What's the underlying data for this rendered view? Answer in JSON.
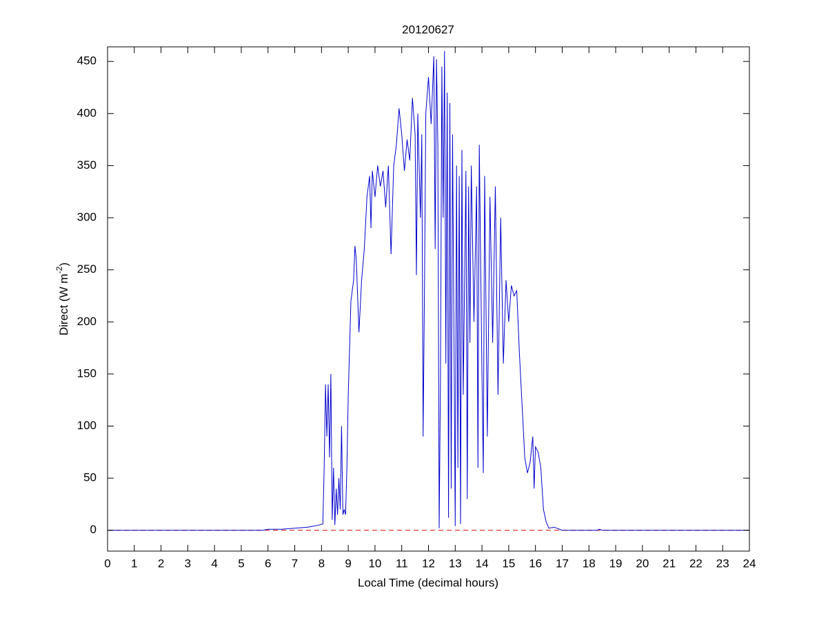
{
  "chart_data": {
    "type": "line",
    "title": "20120627",
    "xlabel": "Local Time (decimal hours)",
    "ylabel": [
      "Direct (W m",
      "-2",
      ")"
    ],
    "xlim": [
      0,
      24
    ],
    "ylim": [
      -20,
      464
    ],
    "xticks": [
      0,
      1,
      2,
      3,
      4,
      5,
      6,
      7,
      8,
      9,
      10,
      11,
      12,
      13,
      14,
      15,
      16,
      17,
      18,
      19,
      20,
      21,
      22,
      23,
      24
    ],
    "yticks": [
      0,
      50,
      100,
      150,
      200,
      250,
      300,
      350,
      400,
      450
    ],
    "grid": false,
    "reference_line": {
      "value": 0,
      "color": "#cc0000",
      "style": "dashed"
    },
    "series": [
      {
        "color": "#0000cc",
        "x": [
          0,
          5.8,
          6,
          6.5,
          7,
          7.5,
          7.9,
          8.05,
          8.1,
          8.15,
          8.2,
          8.25,
          8.3,
          8.35,
          8.4,
          8.45,
          8.5,
          8.55,
          8.6,
          8.65,
          8.7,
          8.75,
          8.8,
          8.85,
          8.9,
          8.95,
          9.0,
          9.1,
          9.2,
          9.25,
          9.3,
          9.4,
          9.5,
          9.6,
          9.7,
          9.8,
          9.85,
          9.9,
          10.0,
          10.1,
          10.2,
          10.3,
          10.4,
          10.5,
          10.6,
          10.7,
          10.8,
          10.9,
          11.0,
          11.1,
          11.2,
          11.3,
          11.4,
          11.5,
          11.55,
          11.6,
          11.7,
          11.75,
          11.8,
          11.85,
          11.9,
          12.0,
          12.1,
          12.2,
          12.25,
          12.3,
          12.35,
          12.4,
          12.45,
          12.5,
          12.55,
          12.6,
          12.65,
          12.7,
          12.75,
          12.8,
          12.85,
          12.9,
          12.95,
          13.0,
          13.05,
          13.1,
          13.15,
          13.2,
          13.25,
          13.3,
          13.4,
          13.45,
          13.5,
          13.55,
          13.6,
          13.7,
          13.8,
          13.85,
          13.9,
          14.0,
          14.05,
          14.1,
          14.2,
          14.3,
          14.4,
          14.5,
          14.6,
          14.7,
          14.8,
          14.9,
          15.0,
          15.1,
          15.2,
          15.3,
          15.4,
          15.5,
          15.6,
          15.7,
          15.8,
          15.9,
          15.95,
          16.0,
          16.1,
          16.2,
          16.3,
          16.4,
          16.5,
          16.7,
          17.0,
          18.3,
          18.4,
          18.5,
          24
        ],
        "values": [
          0,
          0,
          1,
          1,
          2,
          3,
          5,
          6,
          60,
          140,
          90,
          140,
          70,
          150,
          10,
          60,
          5,
          40,
          15,
          50,
          20,
          100,
          15,
          20,
          15,
          60,
          130,
          220,
          240,
          273,
          260,
          190,
          240,
          270,
          320,
          340,
          290,
          345,
          320,
          350,
          330,
          345,
          310,
          350,
          265,
          350,
          370,
          405,
          380,
          345,
          375,
          355,
          415,
          380,
          245,
          400,
          300,
          380,
          90,
          230,
          400,
          435,
          390,
          455,
          270,
          452,
          370,
          2,
          150,
          445,
          300,
          460,
          160,
          420,
          12,
          410,
          40,
          380,
          200,
          4,
          350,
          60,
          340,
          6,
          365,
          130,
          345,
          30,
          330,
          180,
          350,
          200,
          330,
          60,
          370,
          150,
          55,
          340,
          90,
          320,
          180,
          330,
          130,
          300,
          160,
          240,
          200,
          235,
          225,
          230,
          170,
          120,
          70,
          55,
          65,
          90,
          40,
          80,
          75,
          60,
          20,
          8,
          2,
          3,
          0,
          0,
          1,
          0,
          0
        ]
      }
    ]
  }
}
